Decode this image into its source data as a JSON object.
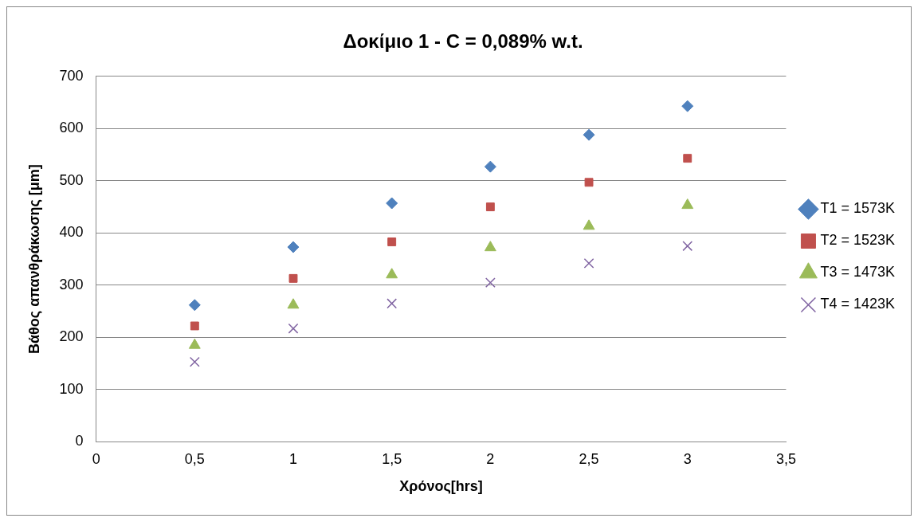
{
  "chart_data": {
    "type": "scatter",
    "title": "Δοκίμιο 1 - C = 0,089% w.t.",
    "xlabel": "Χρόνος[hrs]",
    "ylabel": "Βάθος απανθράκωσης [μm]",
    "xlim": [
      0,
      3.5
    ],
    "xticks": [
      0,
      {
        "value": 0.5,
        "label": "0,5"
      },
      1,
      {
        "value": 1.5,
        "label": "1,5"
      },
      2,
      {
        "value": 2.5,
        "label": "2,5"
      },
      3,
      {
        "value": 3.5,
        "label": "3,5"
      }
    ],
    "ylim": [
      0,
      700
    ],
    "yticks": [
      0,
      100,
      200,
      300,
      400,
      500,
      600,
      700
    ],
    "grid": "y",
    "legend": "right",
    "x": [
      0.5,
      1,
      1.5,
      2,
      2.5,
      3
    ],
    "series": [
      {
        "name": "T1 = 1573K",
        "color": "#4f81bd",
        "marker": "diamond",
        "values": [
          262,
          373,
          457,
          527,
          588,
          643
        ]
      },
      {
        "name": "T2 = 1523K",
        "color": "#c0504d",
        "marker": "square",
        "values": [
          222,
          313,
          383,
          450,
          497,
          543
        ]
      },
      {
        "name": "T3 = 1473K",
        "color": "#9bbb59",
        "marker": "triangle",
        "values": [
          185,
          262,
          320,
          372,
          413,
          453
        ]
      },
      {
        "name": "T4 = 1423K",
        "color": "#8064a2",
        "marker": "cross",
        "values": [
          153,
          217,
          265,
          305,
          342,
          375
        ]
      }
    ]
  }
}
